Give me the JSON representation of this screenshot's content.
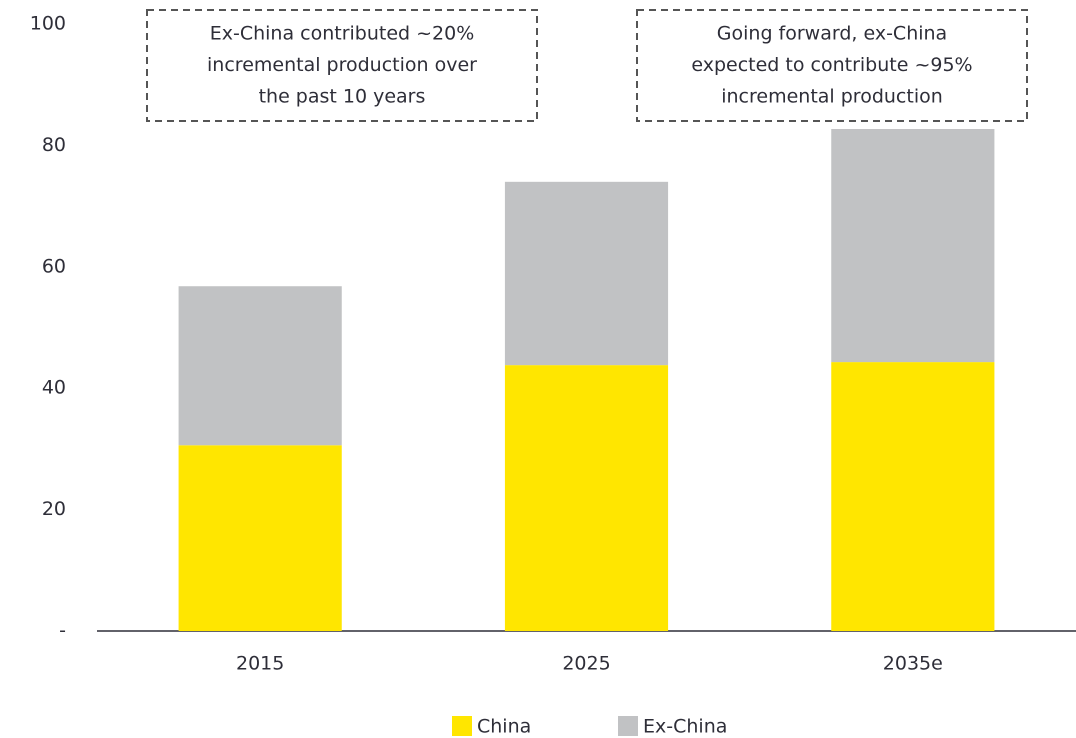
{
  "chart_data": {
    "type": "stacked_bar",
    "categories": [
      "2015",
      "2025",
      "2035e"
    ],
    "series": [
      {
        "name": "China",
        "color": "#ffe600",
        "values": [
          30.6,
          43.8,
          44.3
        ]
      },
      {
        "name": "Ex-China",
        "color": "#c1c2c4",
        "values": [
          26.2,
          30.2,
          38.4
        ]
      }
    ],
    "ylim": [
      0,
      100
    ],
    "yticks": [
      {
        "value": 0,
        "label": "-"
      },
      20,
      40,
      60,
      80,
      100
    ],
    "grid": false,
    "legend": "bottom",
    "annotations": [
      {
        "lines": [
          "Ex-China contributed ~20%",
          "incremental production over",
          "the past 10 years"
        ]
      },
      {
        "lines": [
          "Going forward, ex-China",
          "expected to contribute ~95%",
          "incremental production"
        ]
      }
    ]
  }
}
